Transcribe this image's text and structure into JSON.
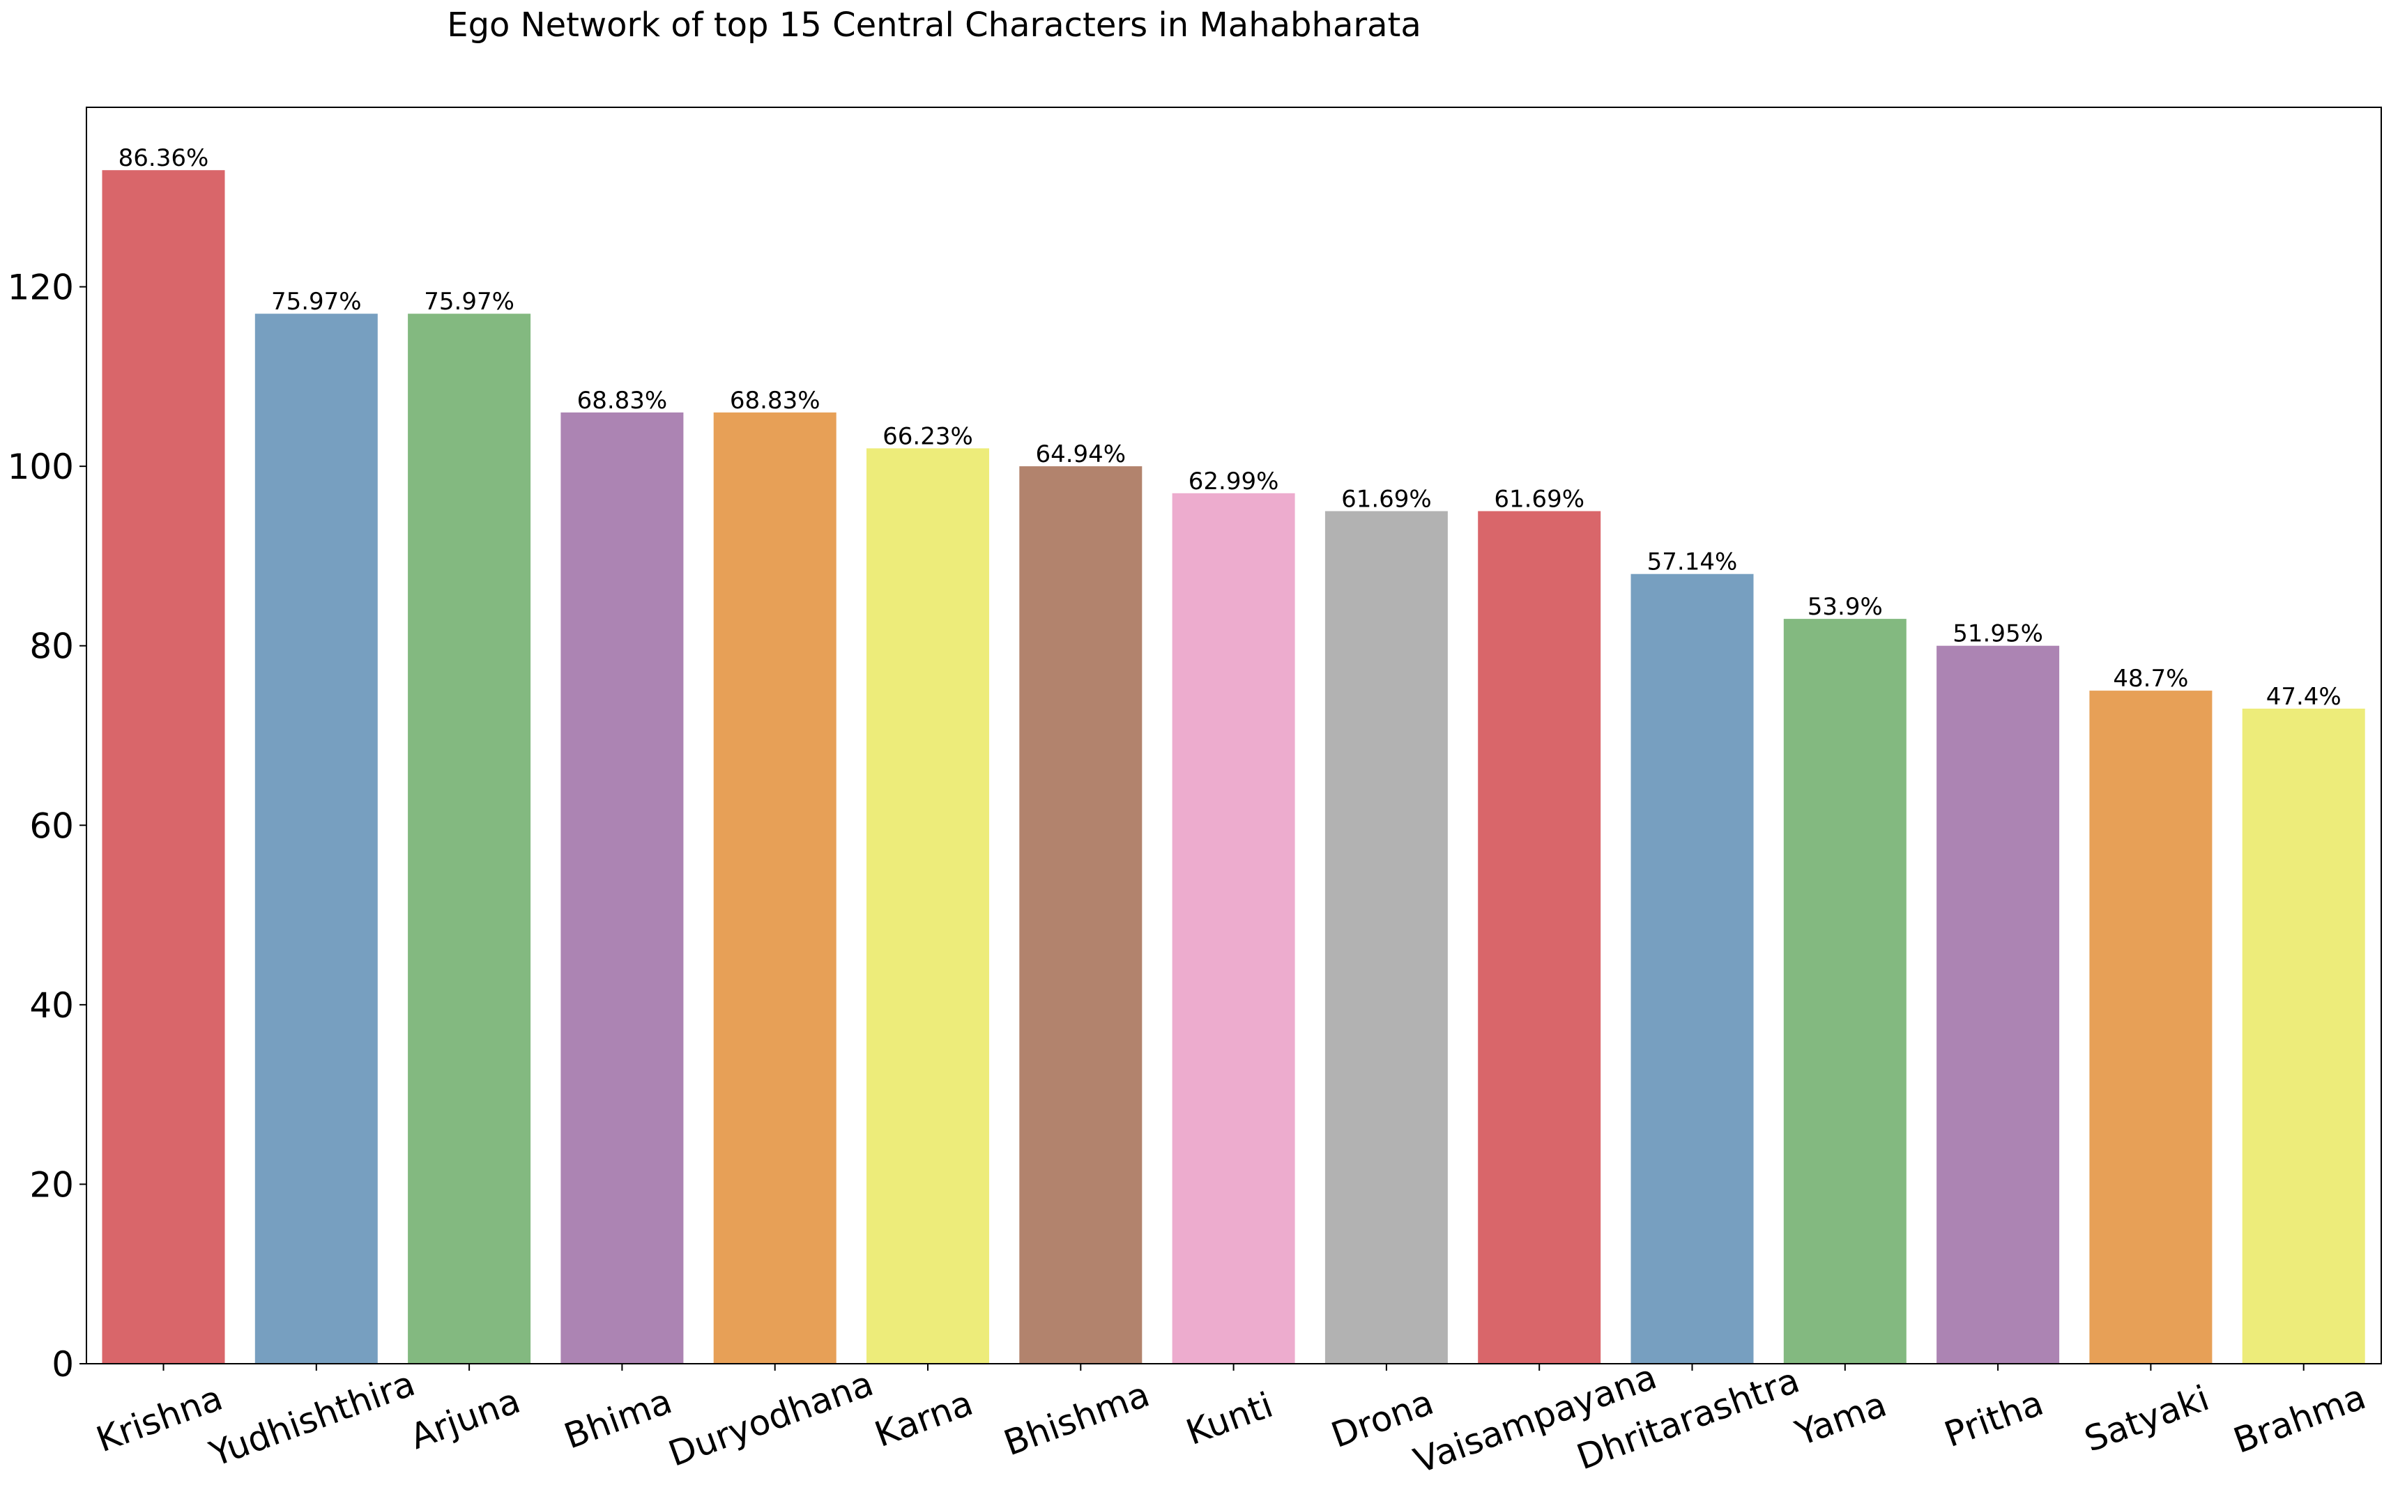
{
  "chart_data": {
    "type": "bar",
    "title": "Ego Network of top 15 Central Characters in Mahabharata",
    "xlabel": "",
    "ylabel": "",
    "ylim": [
      0,
      140
    ],
    "yticks": [
      0,
      20,
      40,
      60,
      80,
      100,
      120
    ],
    "grid": false,
    "categories": [
      "Krishna",
      "Yudhishthira",
      "Arjuna",
      "Bhima",
      "Duryodhana",
      "Karna",
      "Bhishma",
      "Kunti",
      "Drona",
      "Vaisampayana",
      "Dhritarashtra",
      "Yama",
      "Pritha",
      "Satyaki",
      "Brahma"
    ],
    "values": [
      133,
      117,
      117,
      106,
      106,
      102,
      100,
      97,
      95,
      95,
      88,
      83,
      80,
      75,
      73
    ],
    "labels": [
      "86.36%",
      "75.97%",
      "75.97%",
      "68.83%",
      "68.83%",
      "66.23%",
      "64.94%",
      "62.99%",
      "61.69%",
      "61.69%",
      "57.14%",
      "53.9%",
      "51.95%",
      "48.7%",
      "47.4%"
    ],
    "colors": [
      "#d9666a",
      "#779fc0",
      "#83b980",
      "#ac84b3",
      "#e7a057",
      "#edec7a",
      "#b2836d",
      "#edacce",
      "#b2b2b2",
      "#d9666a",
      "#779fc0",
      "#83b980",
      "#ac84b3",
      "#e7a057",
      "#edec7a"
    ]
  }
}
